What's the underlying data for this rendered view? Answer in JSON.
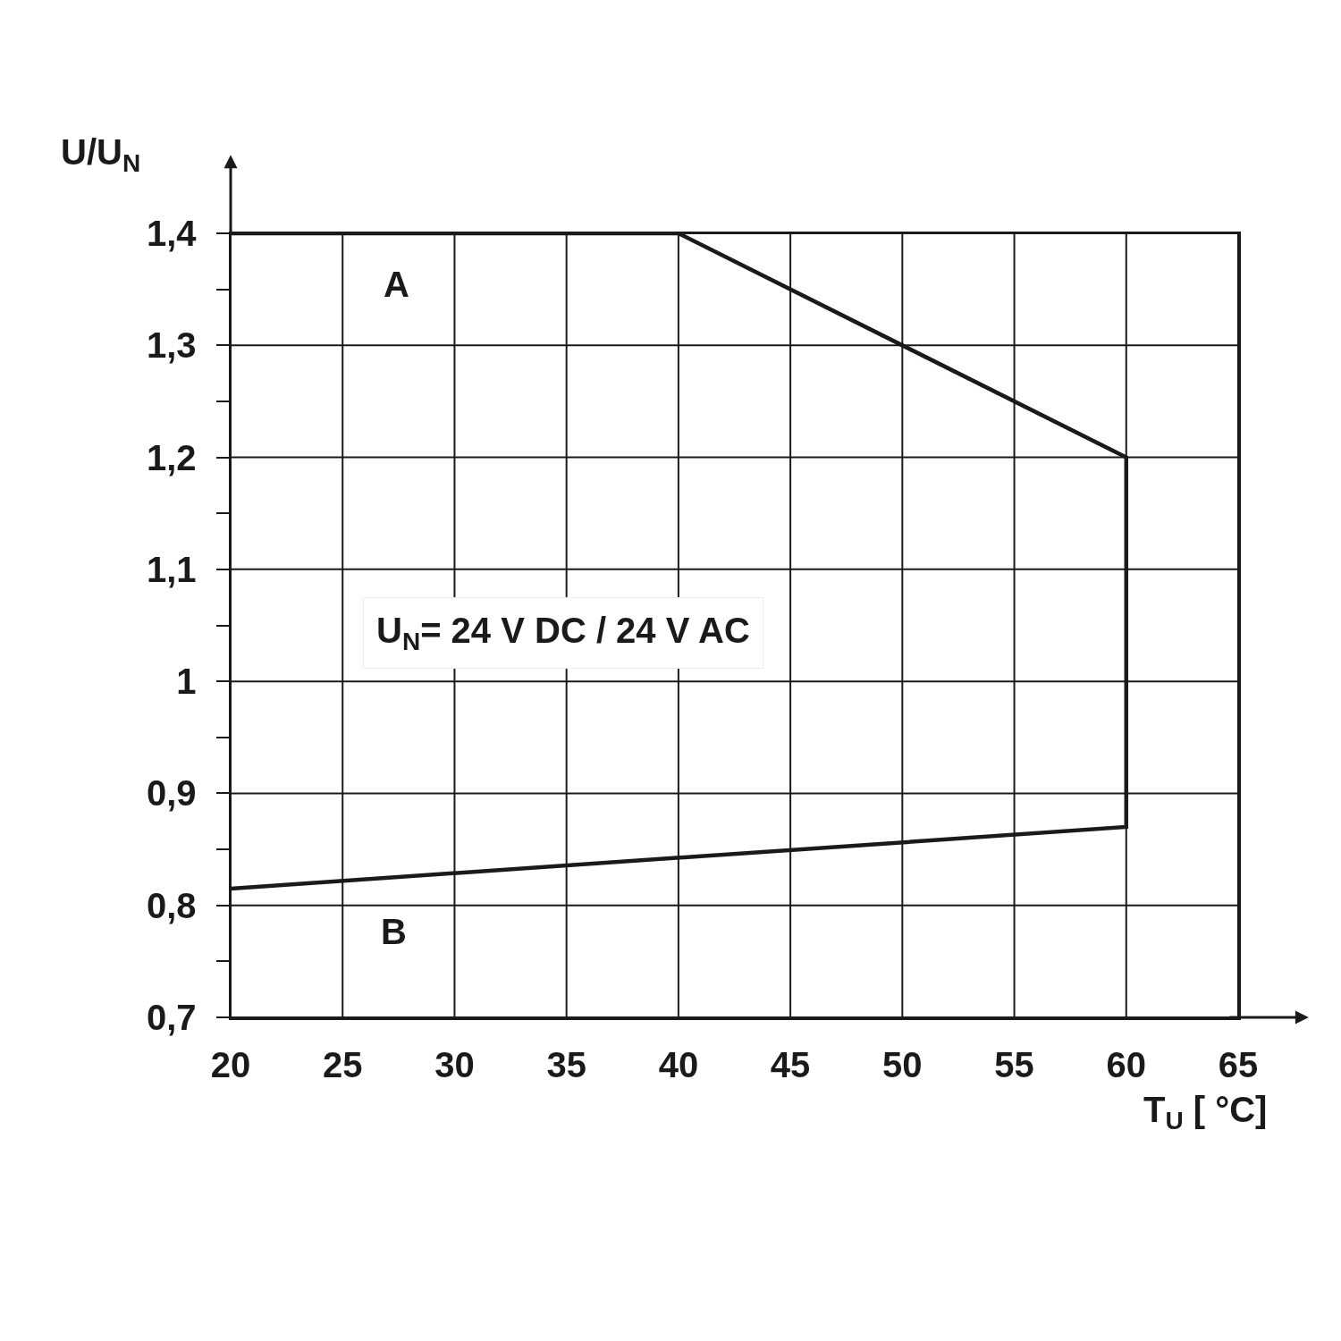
{
  "chart_data": {
    "type": "line",
    "xlabel": "T$_{U}$ [ °C]",
    "ylabel": "U/U$_{N}$",
    "series": [
      {
        "color": "#1a1a1a",
        "x": [
          20,
          40,
          60,
          60,
          20
        ],
        "values": [
          1.4,
          1.4,
          1.2,
          0.87,
          0.815
        ]
      }
    ],
    "xlim": [
      20,
      65
    ],
    "xticks": [
      20,
      25,
      30,
      35,
      40,
      45,
      50,
      55,
      60,
      65
    ],
    "ylim": [
      0.7,
      1.4
    ],
    "yticks": [
      {
        "value": 0.7,
        "label": "0,7"
      },
      {
        "value": 0.75,
        "label": null
      },
      {
        "value": 0.8,
        "label": "0,8"
      },
      {
        "value": 0.85,
        "label": null
      },
      {
        "value": 0.9,
        "label": "0,9"
      },
      {
        "value": 0.95,
        "label": null
      },
      1,
      {
        "value": 1.05,
        "label": null
      },
      {
        "value": 1.1,
        "label": "1,1"
      },
      {
        "value": 1.15,
        "label": null
      },
      {
        "value": 1.2,
        "label": "1,2"
      },
      {
        "value": 1.25,
        "label": null
      },
      {
        "value": 1.3,
        "label": "1,3"
      },
      {
        "value": 1.35,
        "label": null
      },
      {
        "value": 1.4,
        "label": "1,4"
      }
    ],
    "grid": true,
    "marker": "none",
    "line_style": "solid",
    "annotations": [
      "A",
      "B",
      "U$_{N}$= 24 V DC / 24 V AC"
    ]
  }
}
